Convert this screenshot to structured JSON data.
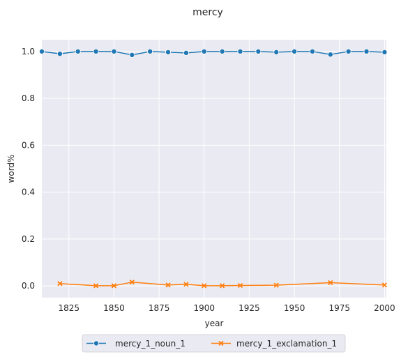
{
  "chart_data": {
    "type": "line",
    "title": "mercy",
    "xlabel": "year",
    "ylabel": "word%",
    "xlim": [
      1810,
      2001
    ],
    "ylim": [
      -0.05,
      1.05
    ],
    "xticks": [
      1825,
      1850,
      1875,
      1900,
      1925,
      1950,
      1975,
      2000
    ],
    "yticks": [
      0.0,
      0.2,
      0.4,
      0.6,
      0.8,
      1.0
    ],
    "xtick_labels": [
      "1825",
      "1850",
      "1875",
      "1900",
      "1925",
      "1950",
      "1975",
      "2000"
    ],
    "ytick_labels": [
      "0.0",
      "0.2",
      "0.4",
      "0.6",
      "0.8",
      "1.0"
    ],
    "grid": true,
    "legend_position": "bottom-center",
    "series": [
      {
        "name": "mercy_1_noun_1",
        "color": "#1f77b4",
        "marker": "circle",
        "x": [
          1810,
          1820,
          1830,
          1840,
          1850,
          1860,
          1870,
          1880,
          1890,
          1900,
          1910,
          1920,
          1930,
          1940,
          1950,
          1960,
          1970,
          1980,
          1990,
          2000
        ],
        "y": [
          1.0,
          0.99,
          1.0,
          1.0,
          1.0,
          0.985,
          1.0,
          0.997,
          0.994,
          1.0,
          1.0,
          1.0,
          1.0,
          0.997,
          1.0,
          1.0,
          0.987,
          1.0,
          1.0,
          0.997
        ]
      },
      {
        "name": "mercy_1_exclamation_1",
        "color": "#ff7f0e",
        "marker": "x",
        "x": [
          1820,
          1840,
          1850,
          1860,
          1880,
          1890,
          1900,
          1910,
          1920,
          1940,
          1970,
          2000
        ],
        "y": [
          0.01,
          0.001,
          0.001,
          0.016,
          0.004,
          0.007,
          0.001,
          0.001,
          0.002,
          0.003,
          0.014,
          0.004
        ]
      }
    ]
  }
}
